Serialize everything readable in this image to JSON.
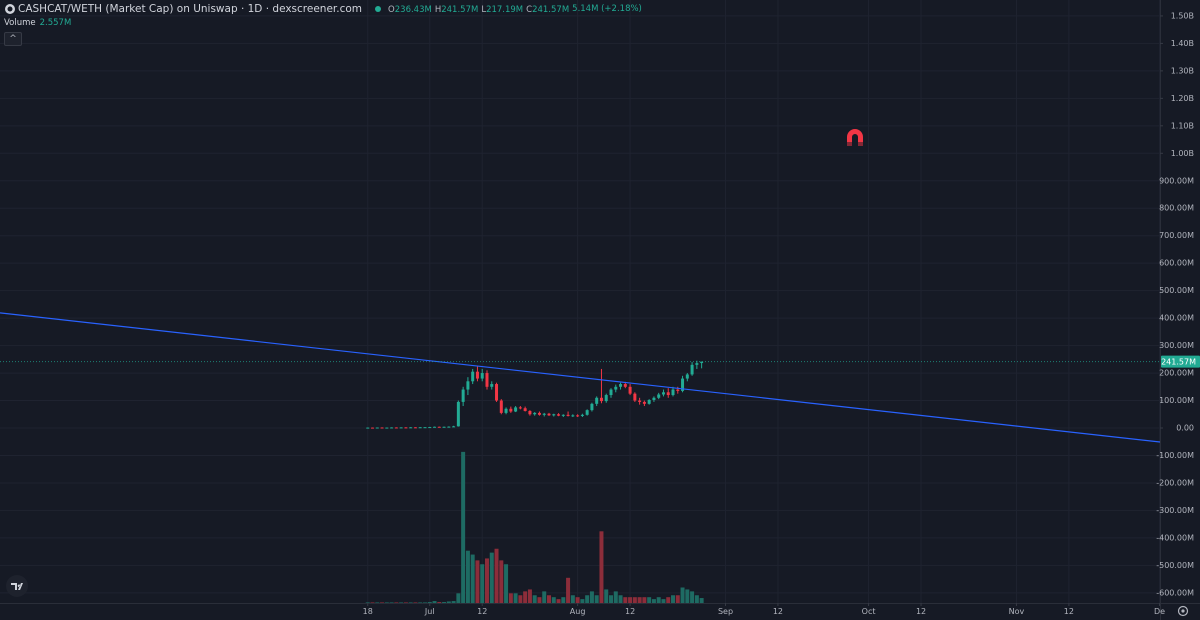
{
  "chart_data": {
    "type": "candlestick",
    "title": "CASHCAT/WETH (Market Cap) on Uniswap · 1D · dexscreener.com",
    "ohlc_legend": [
      {
        "key": "O",
        "value": "236.43M"
      },
      {
        "key": "H",
        "value": "241.57M"
      },
      {
        "key": "L",
        "value": "217.19M"
      },
      {
        "key": "C",
        "value": "241.57M"
      }
    ],
    "change": "5.14M (+2.18%)",
    "last_price_label": "241.57M",
    "up_color": "#22ab94",
    "down_color": "#f23645",
    "volume_up_color": "#1e6b63",
    "volume_down_color": "#8c2d3a",
    "grid": true,
    "xlim": [
      -77.1,
      166.1
    ],
    "xticks": [
      {
        "value": 0,
        "label": "18"
      },
      {
        "value": 13,
        "label": "Jul"
      },
      {
        "value": 24,
        "label": "12"
      },
      {
        "value": 44,
        "label": "Aug"
      },
      {
        "value": 55,
        "label": "12"
      },
      {
        "value": 75,
        "label": "Sep"
      },
      {
        "value": 86,
        "label": "12"
      },
      {
        "value": 105,
        "label": "Oct"
      },
      {
        "value": 116,
        "label": "12"
      },
      {
        "value": 136,
        "label": "Nov"
      },
      {
        "value": 147,
        "label": "12"
      },
      {
        "value": 166,
        "label": "De"
      }
    ],
    "ylim": [
      -637,
      1558
    ],
    "yticks": [
      {
        "value": 1500,
        "label": "1.50B"
      },
      {
        "value": 1400,
        "label": "1.40B"
      },
      {
        "value": 1300,
        "label": "1.30B"
      },
      {
        "value": 1200,
        "label": "1.20B"
      },
      {
        "value": 1100,
        "label": "1.10B"
      },
      {
        "value": 1000,
        "label": "1.00B"
      },
      {
        "value": 900,
        "label": "900.00M"
      },
      {
        "value": 800,
        "label": "800.00M"
      },
      {
        "value": 700,
        "label": "700.00M"
      },
      {
        "value": 600,
        "label": "600.00M"
      },
      {
        "value": 500,
        "label": "500.00M"
      },
      {
        "value": 400,
        "label": "400.00M"
      },
      {
        "value": 300,
        "label": "300.00M"
      },
      {
        "value": 200,
        "label": "200.00M"
      },
      {
        "value": 100,
        "label": "100.00M"
      },
      {
        "value": 0,
        "label": "0.00"
      },
      {
        "value": -100,
        "label": "-100.00M"
      },
      {
        "value": -200,
        "label": "-200.00M"
      },
      {
        "value": -300,
        "label": "-300.00M"
      },
      {
        "value": -400,
        "label": "-400.00M"
      },
      {
        "value": -500,
        "label": "-500.00M"
      },
      {
        "value": -600,
        "label": "-600.00M"
      }
    ],
    "x": [
      0,
      1,
      2,
      3,
      4,
      5,
      6,
      7,
      8,
      9,
      10,
      11,
      12,
      13,
      14,
      15,
      16,
      17,
      18,
      19,
      20,
      21,
      22,
      23,
      24,
      25,
      26,
      27,
      28,
      29,
      30,
      31,
      32,
      33,
      34,
      35,
      36,
      37,
      38,
      39,
      40,
      41,
      42,
      43,
      44,
      45,
      46,
      47,
      48,
      49,
      50,
      51,
      52,
      53,
      54,
      55,
      56,
      57,
      58,
      59,
      60,
      61,
      62,
      63,
      64,
      65,
      66,
      67,
      68,
      69,
      70
    ],
    "open": [
      1,
      1.5,
      1.2,
      1.8,
      1.5,
      1.6,
      2,
      1.8,
      2.2,
      2,
      2.5,
      2.3,
      2.8,
      3,
      3.5,
      4.5,
      4,
      4.5,
      5,
      6,
      95,
      140,
      170,
      205,
      180,
      200,
      150,
      160,
      100,
      55,
      70,
      60,
      75,
      72,
      62,
      50,
      55,
      48,
      52,
      46,
      50,
      45,
      48,
      44,
      46,
      44,
      48,
      65,
      88,
      110,
      98,
      120,
      140,
      150,
      160,
      150,
      125,
      100,
      95,
      88,
      102,
      110,
      122,
      130,
      120,
      140,
      135,
      180,
      195,
      230,
      236.43
    ],
    "high": [
      2,
      2,
      2,
      2.5,
      2,
      2.5,
      2.5,
      2.5,
      3,
      3,
      3,
      3,
      3.5,
      4,
      5,
      5,
      5,
      6,
      8,
      100,
      150,
      185,
      215,
      225,
      215,
      210,
      170,
      165,
      105,
      75,
      78,
      80,
      80,
      78,
      65,
      58,
      60,
      55,
      55,
      52,
      54,
      50,
      60,
      50,
      50,
      52,
      68,
      92,
      115,
      215,
      125,
      145,
      158,
      165,
      168,
      160,
      130,
      110,
      100,
      105,
      115,
      128,
      140,
      145,
      150,
      150,
      190,
      200,
      240,
      245,
      241.57
    ],
    "low": [
      0.5,
      1,
      1,
      1.2,
      1,
      1.2,
      1.5,
      1.5,
      1.8,
      1.8,
      2,
      2,
      2.5,
      2.5,
      3,
      3.5,
      3.5,
      4,
      4.5,
      5,
      80,
      120,
      160,
      170,
      170,
      140,
      140,
      95,
      50,
      50,
      55,
      58,
      68,
      60,
      45,
      45,
      45,
      42,
      44,
      42,
      43,
      40,
      42,
      40,
      40,
      40,
      45,
      60,
      80,
      90,
      92,
      110,
      130,
      140,
      145,
      120,
      95,
      85,
      80,
      85,
      95,
      105,
      115,
      110,
      115,
      125,
      130,
      170,
      190,
      215,
      217.19
    ],
    "close": [
      1.5,
      1.2,
      1.8,
      1.5,
      1.6,
      2,
      1.8,
      2.2,
      2,
      2.5,
      2.3,
      2.8,
      3,
      3.5,
      4.5,
      4,
      4.5,
      5,
      6,
      95,
      140,
      170,
      205,
      180,
      200,
      150,
      160,
      100,
      55,
      70,
      60,
      75,
      72,
      62,
      50,
      55,
      48,
      52,
      46,
      50,
      45,
      48,
      44,
      46,
      44,
      48,
      65,
      88,
      110,
      98,
      120,
      140,
      150,
      160,
      150,
      125,
      100,
      95,
      88,
      102,
      110,
      122,
      130,
      120,
      140,
      135,
      180,
      195,
      230,
      236,
      241.57
    ],
    "volume": {
      "name": "Volume",
      "legend_value": "2.557M",
      "ylim": [
        0,
        80
      ],
      "values": [
        0.3,
        0.3,
        0.3,
        0.3,
        0.3,
        0.3,
        0.3,
        0.3,
        0.3,
        0.3,
        0.3,
        0.3,
        0.3,
        0.5,
        1,
        0.5,
        0.5,
        0.8,
        1,
        5,
        78,
        27,
        25,
        22,
        20,
        23,
        26,
        28,
        22,
        20,
        5,
        5,
        4,
        6,
        7,
        4,
        3,
        6,
        4,
        3,
        2,
        3,
        13,
        4,
        3,
        2,
        4,
        6,
        4,
        37,
        7,
        4,
        6,
        4,
        3,
        3,
        3,
        3,
        3,
        3,
        2,
        3,
        2,
        3,
        4,
        4,
        8,
        7,
        6,
        4,
        2.557
      ]
    },
    "trendline": {
      "color": "#2962ff",
      "x": [
        -77.1,
        166.1
      ],
      "values": [
        419,
        -51
      ]
    }
  }
}
